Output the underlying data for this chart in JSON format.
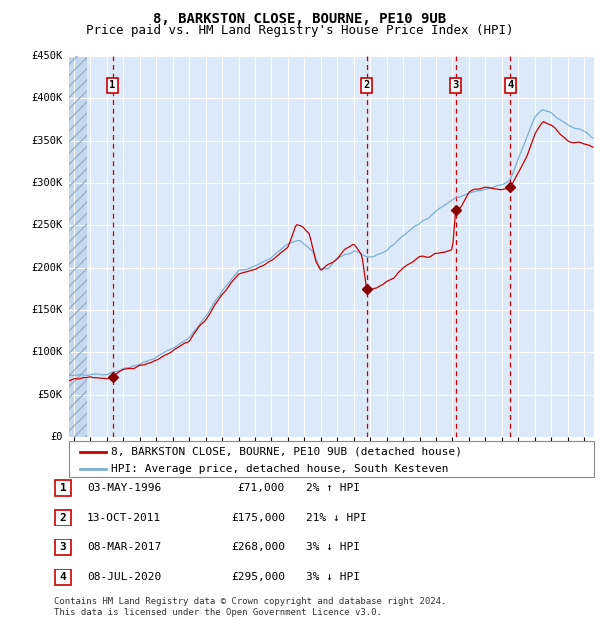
{
  "title": "8, BARKSTON CLOSE, BOURNE, PE10 9UB",
  "subtitle": "Price paid vs. HM Land Registry's House Price Index (HPI)",
  "legend_label_red": "8, BARKSTON CLOSE, BOURNE, PE10 9UB (detached house)",
  "legend_label_blue": "HPI: Average price, detached house, South Kesteven",
  "footer_line1": "Contains HM Land Registry data © Crown copyright and database right 2024.",
  "footer_line2": "This data is licensed under the Open Government Licence v3.0.",
  "transactions": [
    {
      "num": 1,
      "date": "03-MAY-1996",
      "price": 71000,
      "hpi_pct": "2%",
      "hpi_dir": "↑"
    },
    {
      "num": 2,
      "date": "13-OCT-2011",
      "price": 175000,
      "hpi_pct": "21%",
      "hpi_dir": "↓"
    },
    {
      "num": 3,
      "date": "08-MAR-2017",
      "price": 268000,
      "hpi_pct": "3%",
      "hpi_dir": "↓"
    },
    {
      "num": 4,
      "date": "08-JUL-2020",
      "price": 295000,
      "hpi_pct": "3%",
      "hpi_dir": "↓"
    }
  ],
  "transaction_dates_decimal": [
    1996.35,
    2011.78,
    2017.19,
    2020.52
  ],
  "dot_prices": [
    71000,
    175000,
    268000,
    295000
  ],
  "ylim": [
    0,
    450000
  ],
  "yticks": [
    0,
    50000,
    100000,
    150000,
    200000,
    250000,
    300000,
    350000,
    400000,
    450000
  ],
  "ytick_labels": [
    "£0",
    "£50K",
    "£100K",
    "£150K",
    "£200K",
    "£250K",
    "£300K",
    "£350K",
    "£400K",
    "£450K"
  ],
  "xlim_start": 1993.7,
  "xlim_end": 2025.6,
  "hatch_end": 1994.8,
  "background_color": "#dce9f8",
  "hatch_face_color": "#c5d8ee",
  "red_line_color": "#cc0000",
  "blue_line_color": "#7ab0d4",
  "vline_color": "#cc0000",
  "grid_color": "#ffffff",
  "dot_color": "#880000",
  "box_edge_color": "#cc0000",
  "title_fontsize": 10,
  "subtitle_fontsize": 9,
  "tick_fontsize": 7.5,
  "legend_fontsize": 8,
  "table_fontsize": 8,
  "footer_fontsize": 6.5
}
